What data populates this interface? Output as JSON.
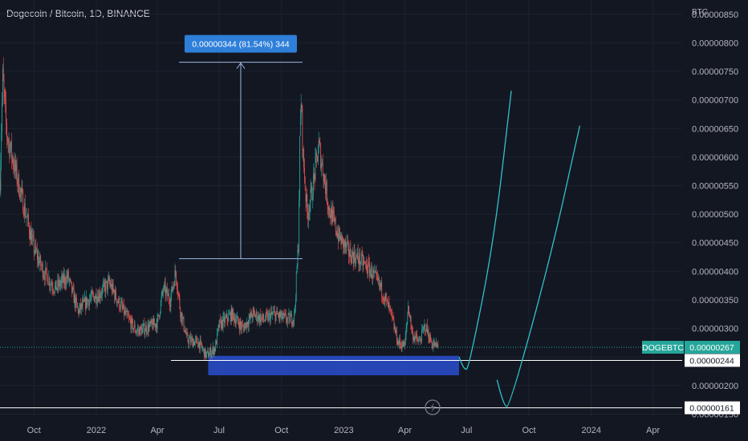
{
  "header": {
    "title": "Dogecoin / Bitcoin, 1D, BINANCE"
  },
  "chart_data": {
    "type": "candlestick",
    "y_unit": "BTC",
    "ylim": [
      1.45e-06,
      8.75e-06
    ],
    "y_ticks": [
      {
        "value": 8.5e-06,
        "label": "0.00000850"
      },
      {
        "value": 8e-06,
        "label": "0.00000800"
      },
      {
        "value": 7.5e-06,
        "label": "0.00000750"
      },
      {
        "value": 7e-06,
        "label": "0.00000700"
      },
      {
        "value": 6.5e-06,
        "label": "0.00000650"
      },
      {
        "value": 6e-06,
        "label": "0.00000600"
      },
      {
        "value": 5.5e-06,
        "label": "0.00000550"
      },
      {
        "value": 5e-06,
        "label": "0.00000500"
      },
      {
        "value": 4.5e-06,
        "label": "0.00000450"
      },
      {
        "value": 4e-06,
        "label": "0.00000400"
      },
      {
        "value": 3.5e-06,
        "label": "0.00000350"
      },
      {
        "value": 3e-06,
        "label": "0.00000300"
      },
      {
        "value": 2.5e-06,
        "label": "0.00000250"
      },
      {
        "value": 2e-06,
        "label": "0.00000200"
      },
      {
        "value": 1.5e-06,
        "label": "0.00000150"
      }
    ],
    "x_ticks": [
      {
        "date": "2021-10-01",
        "label": "Oct"
      },
      {
        "date": "2022-01-01",
        "label": "2022"
      },
      {
        "date": "2022-04-01",
        "label": "Apr"
      },
      {
        "date": "2022-07-01",
        "label": "Jul"
      },
      {
        "date": "2022-10-01",
        "label": "Oct"
      },
      {
        "date": "2023-01-01",
        "label": "2023"
      },
      {
        "date": "2023-04-01",
        "label": "Apr"
      },
      {
        "date": "2023-07-01",
        "label": "Jul"
      },
      {
        "date": "2023-10-01",
        "label": "Oct"
      },
      {
        "date": "2024-01-01",
        "label": "2024"
      },
      {
        "date": "2024-04-01",
        "label": "Apr"
      }
    ],
    "x_range": [
      "2021-08-12",
      "2024-05-14"
    ],
    "price_path": [
      [
        "2021-08-12",
        5.6e-06
      ],
      [
        "2021-08-16",
        7.4e-06
      ],
      [
        "2021-08-22",
        6.4e-06
      ],
      [
        "2021-09-01",
        5.9e-06
      ],
      [
        "2021-09-15",
        5.2e-06
      ],
      [
        "2021-10-01",
        4.4e-06
      ],
      [
        "2021-10-15",
        4e-06
      ],
      [
        "2021-11-01",
        3.7e-06
      ],
      [
        "2021-11-20",
        3.9e-06
      ],
      [
        "2021-12-05",
        3.3e-06
      ],
      [
        "2021-12-20",
        3.5e-06
      ],
      [
        "2022-01-05",
        3.6e-06
      ],
      [
        "2022-01-20",
        3.8e-06
      ],
      [
        "2022-02-01",
        3.5e-06
      ],
      [
        "2022-02-15",
        3.2e-06
      ],
      [
        "2022-03-01",
        2.95e-06
      ],
      [
        "2022-03-15",
        3e-06
      ],
      [
        "2022-04-01",
        3.1e-06
      ],
      [
        "2022-04-10",
        3.7e-06
      ],
      [
        "2022-04-20",
        3.5e-06
      ],
      [
        "2022-04-28",
        4e-06
      ],
      [
        "2022-05-05",
        3.3e-06
      ],
      [
        "2022-05-15",
        2.8e-06
      ],
      [
        "2022-06-01",
        2.75e-06
      ],
      [
        "2022-06-12",
        2.52e-06
      ],
      [
        "2022-06-25",
        2.65e-06
      ],
      [
        "2022-07-01",
        3.05e-06
      ],
      [
        "2022-07-20",
        3.25e-06
      ],
      [
        "2022-08-05",
        3e-06
      ],
      [
        "2022-08-20",
        3.25e-06
      ],
      [
        "2022-09-05",
        3.15e-06
      ],
      [
        "2022-09-20",
        3.25e-06
      ],
      [
        "2022-10-10",
        3.15e-06
      ],
      [
        "2022-10-20",
        3.2e-06
      ],
      [
        "2022-10-26",
        4.5e-06
      ],
      [
        "2022-10-28",
        6.2e-06
      ],
      [
        "2022-10-30",
        7e-06
      ],
      [
        "2022-11-02",
        6e-06
      ],
      [
        "2022-11-08",
        5e-06
      ],
      [
        "2022-11-15",
        5.4e-06
      ],
      [
        "2022-11-25",
        6.2e-06
      ],
      [
        "2022-12-01",
        5.8e-06
      ],
      [
        "2022-12-10",
        5.1e-06
      ],
      [
        "2022-12-25",
        4.6e-06
      ],
      [
        "2023-01-10",
        4.3e-06
      ],
      [
        "2023-01-25",
        4.2e-06
      ],
      [
        "2023-02-10",
        4e-06
      ],
      [
        "2023-02-25",
        3.7e-06
      ],
      [
        "2023-03-10",
        3.3e-06
      ],
      [
        "2023-03-22",
        2.75e-06
      ],
      [
        "2023-04-01",
        2.7e-06
      ],
      [
        "2023-04-06",
        3.4e-06
      ],
      [
        "2023-04-12",
        2.9e-06
      ],
      [
        "2023-04-22",
        2.75e-06
      ],
      [
        "2023-05-01",
        3.05e-06
      ],
      [
        "2023-05-10",
        2.75e-06
      ],
      [
        "2023-05-20",
        2.67e-06
      ]
    ],
    "candles_end": "2023-05-20",
    "last_price": {
      "value": 2.67e-06,
      "label": "0.00000267",
      "symbol": "DOGEBTC"
    },
    "horizontal_lines": [
      {
        "value": 2.44e-06,
        "label": "0.00000244"
      },
      {
        "value": 1.61e-06,
        "label": "0.00000161"
      }
    ],
    "support_zone": {
      "start": "2022-06-15",
      "end": "2023-06-20",
      "top": 2.52e-06,
      "bottom": 2.18e-06
    },
    "measure": {
      "start": "2022-05-03",
      "end": "2022-11-01",
      "from_value": 4.22e-06,
      "to_value": 7.66e-06,
      "label": "0.00000344 (81.54%) 344"
    },
    "projections": [
      {
        "points": [
          [
            "2023-06-20",
            2.5e-06
          ],
          [
            "2023-06-28",
            2.24e-06
          ],
          [
            "2023-07-05",
            2.35e-06
          ],
          [
            "2023-08-10",
            4.5e-06
          ],
          [
            "2023-09-05",
            7.16e-06
          ]
        ]
      },
      {
        "points": [
          [
            "2023-08-15",
            2.1e-06
          ],
          [
            "2023-08-25",
            1.62e-06
          ],
          [
            "2023-09-03",
            1.65e-06
          ],
          [
            "2023-11-01",
            4.2e-06
          ],
          [
            "2023-12-15",
            6.55e-06
          ]
        ]
      }
    ]
  }
}
